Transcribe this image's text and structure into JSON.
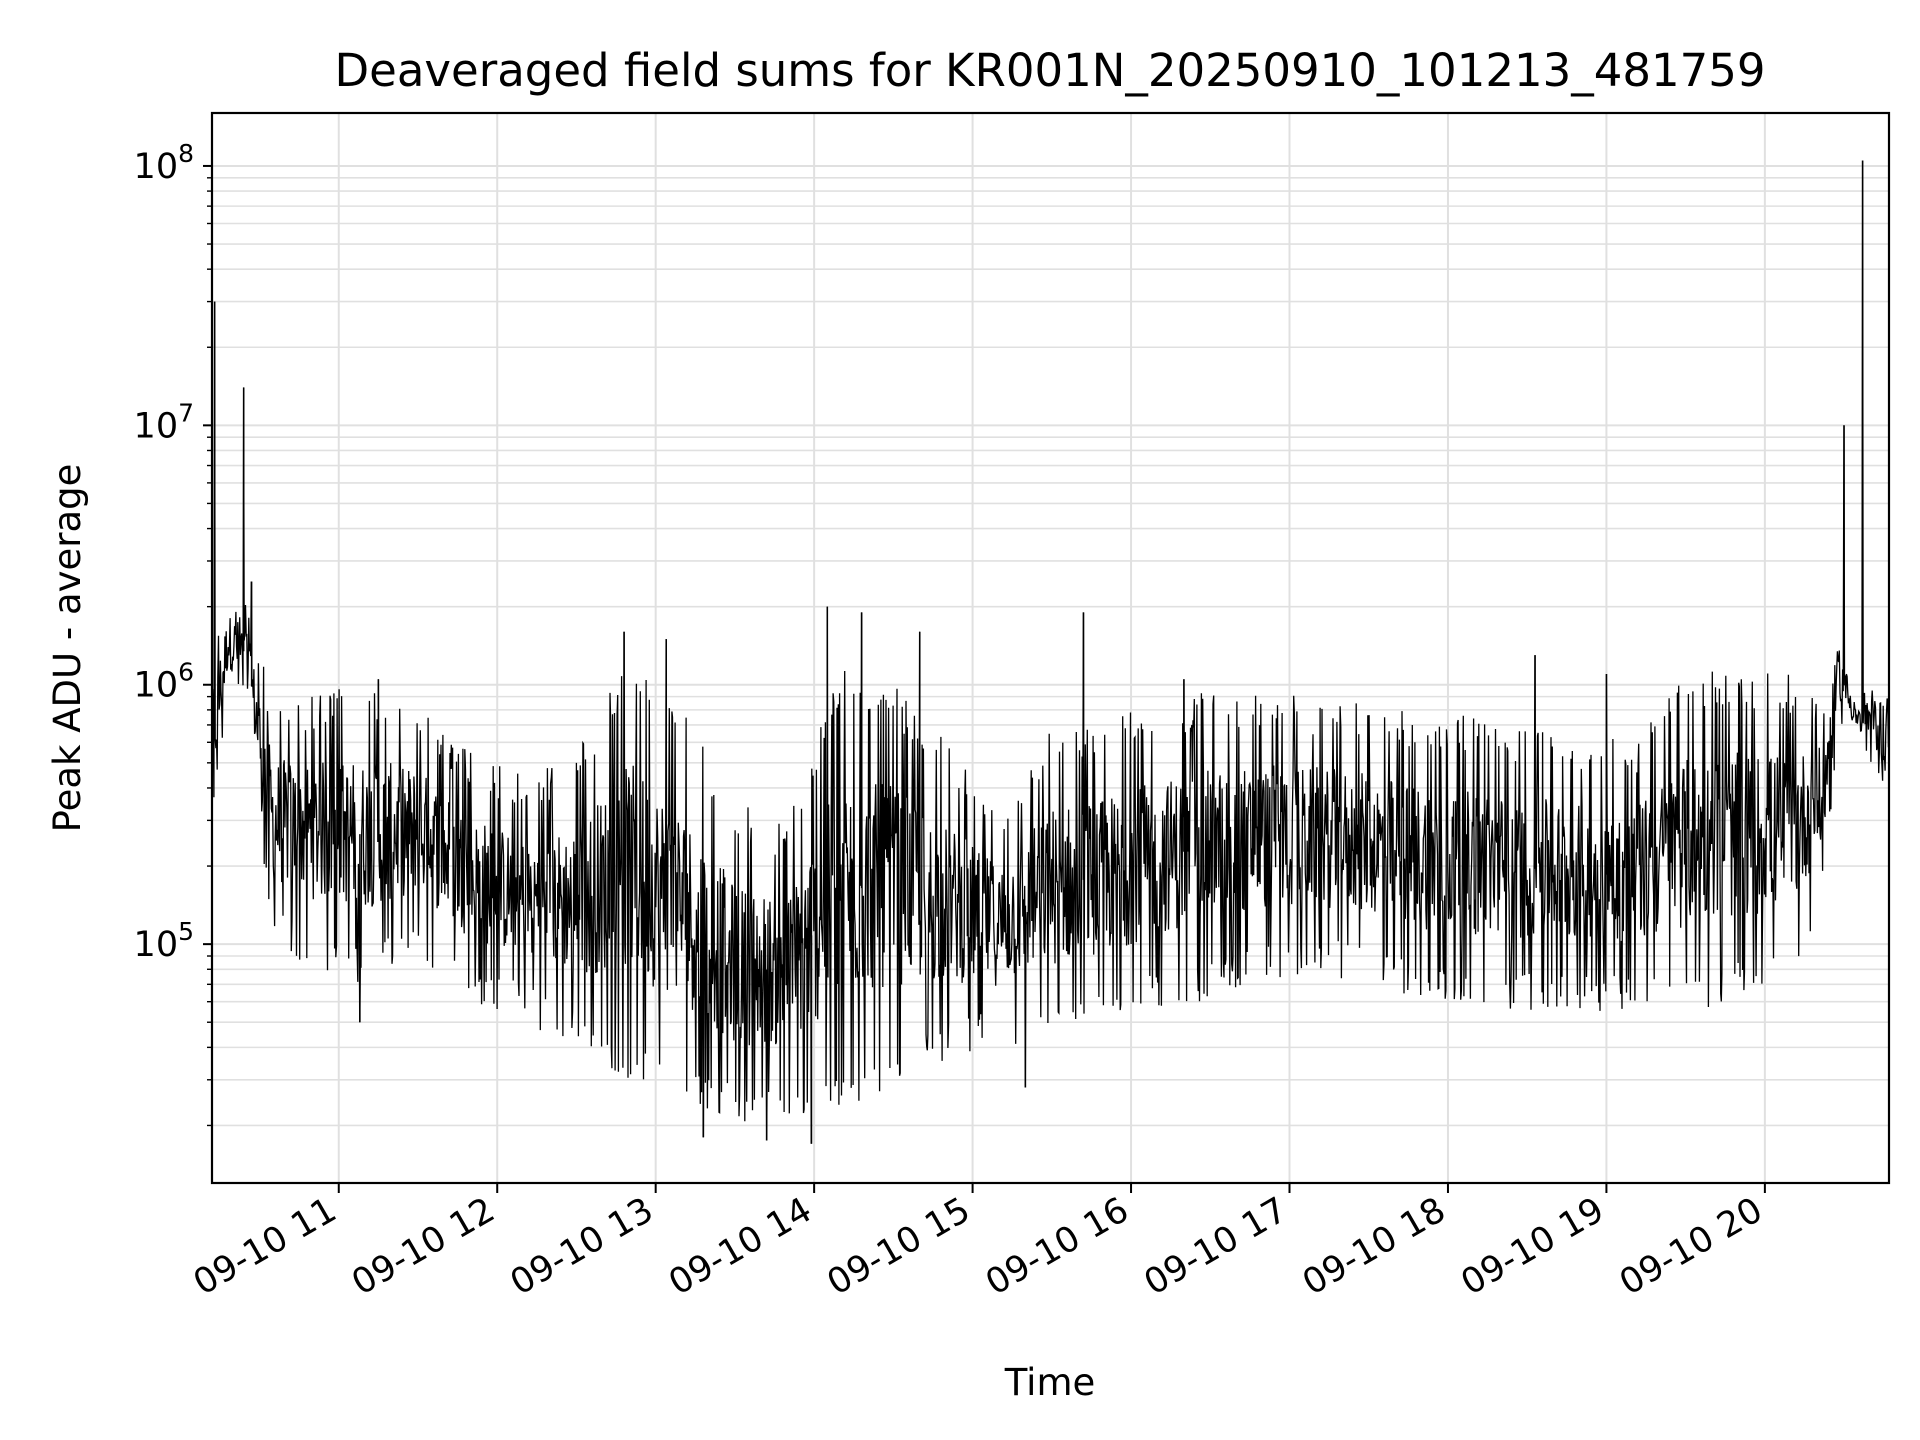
{
  "chart_data": {
    "type": "line",
    "title": "Deaveraged field sums for KR001N_20250910_101213_481759",
    "xlabel": "Time",
    "ylabel": "Peak ADU - average",
    "yscale": "log",
    "xlim": [
      "09-10 10:12",
      "09-10 20:47"
    ],
    "ylim": [
      12000,
      160000000
    ],
    "grid": true,
    "line_color": "#000000",
    "grid_color": "#e0e0e0",
    "x_ticks": [
      {
        "value": "09-10 11:00",
        "label": "09-10 11"
      },
      {
        "value": "09-10 12:00",
        "label": "09-10 12"
      },
      {
        "value": "09-10 13:00",
        "label": "09-10 13"
      },
      {
        "value": "09-10 14:00",
        "label": "09-10 14"
      },
      {
        "value": "09-10 15:00",
        "label": "09-10 15"
      },
      {
        "value": "09-10 16:00",
        "label": "09-10 16"
      },
      {
        "value": "09-10 17:00",
        "label": "09-10 17"
      },
      {
        "value": "09-10 18:00",
        "label": "09-10 18"
      },
      {
        "value": "09-10 19:00",
        "label": "09-10 19"
      },
      {
        "value": "09-10 20:00",
        "label": "09-10 20"
      }
    ],
    "y_ticks": [
      {
        "value": 100000,
        "base": "10",
        "exp": "5"
      },
      {
        "value": 1000000,
        "base": "10",
        "exp": "6"
      },
      {
        "value": 10000000,
        "base": "10",
        "exp": "7"
      },
      {
        "value": 100000000,
        "base": "10",
        "exp": "8"
      }
    ],
    "series": [
      {
        "envelope": [
          {
            "x": "09-10 10:12",
            "low": 230000,
            "high": 1500000
          },
          {
            "x": "09-10 10:18",
            "low": 900000,
            "high": 2400000
          },
          {
            "x": "09-10 10:25",
            "low": 800000,
            "high": 2200000
          },
          {
            "x": "09-10 10:35",
            "low": 100000,
            "high": 900000
          },
          {
            "x": "09-10 10:50",
            "low": 80000,
            "high": 950000
          },
          {
            "x": "09-10 11:10",
            "low": 70000,
            "high": 1000000
          },
          {
            "x": "09-10 11:30",
            "low": 90000,
            "high": 850000
          },
          {
            "x": "09-10 11:50",
            "low": 60000,
            "high": 550000
          },
          {
            "x": "09-10 12:10",
            "low": 50000,
            "high": 450000
          },
          {
            "x": "09-10 12:30",
            "low": 40000,
            "high": 550000
          },
          {
            "x": "09-10 12:50",
            "low": 30000,
            "high": 1300000
          },
          {
            "x": "09-10 13:10",
            "low": 25000,
            "high": 800000
          },
          {
            "x": "09-10 13:30",
            "low": 20000,
            "high": 350000
          },
          {
            "x": "09-10 13:50",
            "low": 20000,
            "high": 300000
          },
          {
            "x": "09-10 14:10",
            "low": 22000,
            "high": 1200000
          },
          {
            "x": "09-10 14:30",
            "low": 28000,
            "high": 1000000
          },
          {
            "x": "09-10 14:50",
            "low": 35000,
            "high": 600000
          },
          {
            "x": "09-10 15:10",
            "low": 40000,
            "high": 350000
          },
          {
            "x": "09-10 15:30",
            "low": 40000,
            "high": 700000
          },
          {
            "x": "09-10 15:50",
            "low": 45000,
            "high": 750000
          },
          {
            "x": "09-10 16:10",
            "low": 55000,
            "high": 850000
          },
          {
            "x": "09-10 16:30",
            "low": 60000,
            "high": 950000
          },
          {
            "x": "09-10 16:50",
            "low": 70000,
            "high": 950000
          },
          {
            "x": "09-10 17:10",
            "low": 75000,
            "high": 900000
          },
          {
            "x": "09-10 17:30",
            "low": 70000,
            "high": 850000
          },
          {
            "x": "09-10 17:50",
            "low": 60000,
            "high": 800000
          },
          {
            "x": "09-10 18:10",
            "low": 55000,
            "high": 750000
          },
          {
            "x": "09-10 18:30",
            "low": 55000,
            "high": 700000
          },
          {
            "x": "09-10 18:50",
            "low": 55000,
            "high": 650000
          },
          {
            "x": "09-10 19:10",
            "low": 55000,
            "high": 600000
          },
          {
            "x": "09-10 19:30",
            "low": 55000,
            "high": 1100000
          },
          {
            "x": "09-10 19:50",
            "low": 60000,
            "high": 1150000
          },
          {
            "x": "09-10 20:10",
            "low": 70000,
            "high": 1100000
          },
          {
            "x": "09-10 20:22",
            "low": 150000,
            "high": 900000
          },
          {
            "x": "09-10 20:28",
            "low": 700000,
            "high": 1800000
          },
          {
            "x": "09-10 20:35",
            "low": 600000,
            "high": 900000
          },
          {
            "x": "09-10 20:47",
            "low": 350000,
            "high": 1300000
          }
        ],
        "spikes": [
          {
            "x": "09-10 10:13",
            "value": 30000000
          },
          {
            "x": "09-10 10:24",
            "value": 14000000
          },
          {
            "x": "09-10 10:27",
            "value": 2500000
          },
          {
            "x": "09-10 11:15",
            "value": 1050000
          },
          {
            "x": "09-10 12:48",
            "value": 1600000
          },
          {
            "x": "09-10 13:04",
            "value": 1500000
          },
          {
            "x": "09-10 14:05",
            "value": 2000000
          },
          {
            "x": "09-10 14:18",
            "value": 1900000
          },
          {
            "x": "09-10 14:40",
            "value": 1600000
          },
          {
            "x": "09-10 15:42",
            "value": 1900000
          },
          {
            "x": "09-10 16:20",
            "value": 1050000
          },
          {
            "x": "09-10 18:33",
            "value": 1300000
          },
          {
            "x": "09-10 19:00",
            "value": 1100000
          },
          {
            "x": "09-10 20:30",
            "value": 10000000
          },
          {
            "x": "09-10 20:37",
            "value": 105000000
          }
        ],
        "dips": [
          {
            "x": "09-10 13:18",
            "value": 18000
          },
          {
            "x": "09-10 13:42",
            "value": 17500
          },
          {
            "x": "09-10 13:59",
            "value": 17000
          },
          {
            "x": "09-10 11:08",
            "value": 50000
          },
          {
            "x": "09-10 15:20",
            "value": 28000
          }
        ]
      }
    ]
  }
}
